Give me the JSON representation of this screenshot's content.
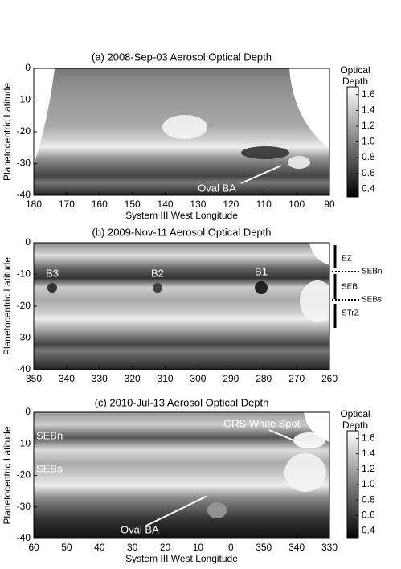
{
  "chart_data": [
    {
      "type": "image",
      "title": "(a) 2008-Sep-03 Aerosol Optical Depth",
      "x_label": "System III West Longitude",
      "y_label": "Planetocentric Latitude",
      "xlim": [
        180,
        90
      ],
      "xticks": [
        180,
        170,
        160,
        150,
        140,
        130,
        120,
        110,
        100,
        90
      ],
      "ylim": [
        -40,
        0
      ],
      "yticks": [
        0,
        -10,
        -20,
        -30,
        -40
      ],
      "annotations": [
        "Oval BA"
      ],
      "colorbar": {
        "label": [
          "Optical",
          "Depth"
        ],
        "colormap": "gray",
        "lim": [
          0.3,
          1.7
        ],
        "ticks": [
          1.6,
          1.4,
          1.2,
          {
            "value": 1,
            "label": "1.0"
          },
          0.8,
          0.6,
          0.4
        ]
      }
    },
    {
      "type": "image",
      "title": "(b) 2009-Nov-11 Aerosol Optical Depth",
      "y_label": "Planetocentric Latitude",
      "xlim": [
        350,
        260
      ],
      "xticks": [
        350,
        340,
        330,
        320,
        310,
        300,
        290,
        280,
        270,
        260
      ],
      "ylim": [
        -40,
        0
      ],
      "yticks": [
        0,
        -10,
        -20,
        -30,
        -40
      ],
      "annotations": [
        "B3",
        "B2",
        "B1"
      ],
      "zone_labels": [
        "EZ",
        "SEBn",
        "SEB",
        "SEBs",
        "STrZ"
      ]
    },
    {
      "type": "image",
      "title": "(c) 2010-Jul-13 Aerosol Optical Depth",
      "x_label": "System III West Longitude",
      "y_label": "Planetocentric Latitude",
      "xlim": [
        60,
        -30
      ],
      "xticks": [
        60,
        50,
        40,
        30,
        20,
        10,
        0,
        {
          "value": -10,
          "label": "350"
        },
        {
          "value": -20,
          "label": "340"
        },
        {
          "value": -30,
          "label": "330"
        }
      ],
      "ylim": [
        -40,
        0
      ],
      "yticks": [
        0,
        -10,
        -20,
        -30,
        -40
      ],
      "annotations": [
        "SEBn",
        "SEBs",
        "GRS White Spot",
        "Oval BA"
      ],
      "colorbar": {
        "label": [
          "Optical",
          "Depth"
        ],
        "colormap": "gray",
        "lim": [
          0.3,
          1.7
        ],
        "ticks": [
          1.6,
          1.4,
          1.2,
          {
            "value": 1,
            "label": "1.0"
          },
          0.8,
          0.6,
          0.4
        ]
      }
    }
  ]
}
